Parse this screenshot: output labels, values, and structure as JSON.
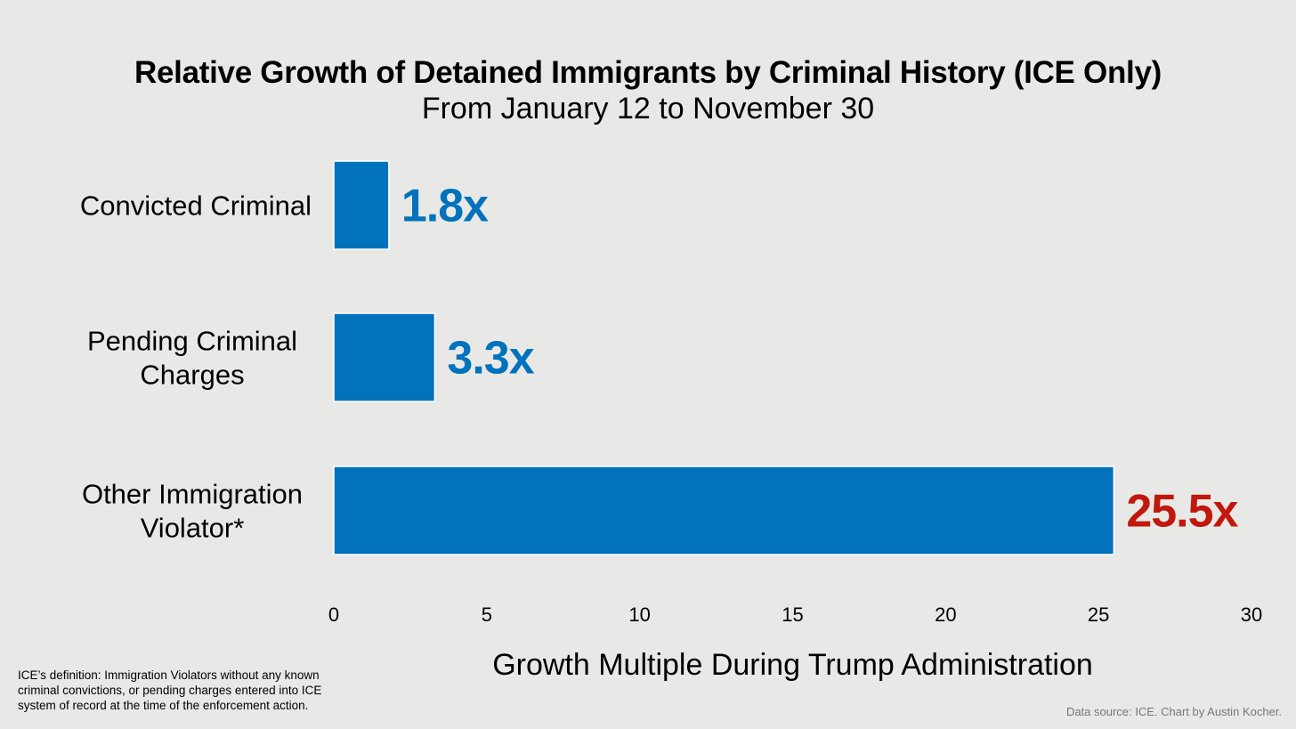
{
  "chart_data": {
    "type": "bar",
    "orientation": "horizontal",
    "title": "Relative Growth of Detained Immigrants by Criminal History (ICE Only)",
    "subtitle": "From January 12 to November 30",
    "categories": [
      "Convicted Criminal",
      "Pending Criminal Charges",
      "Other Immigration Violator*"
    ],
    "category_lines": [
      [
        "Convicted Criminal"
      ],
      [
        "Pending Criminal",
        "Charges"
      ],
      [
        "Other Immigration",
        "Violator*"
      ]
    ],
    "values": [
      1.8,
      3.3,
      25.5
    ],
    "value_labels": [
      "1.8x",
      "3.3x",
      "25.5x"
    ],
    "value_label_colors": [
      "#0172bb",
      "#0172bb",
      "#c0180c"
    ],
    "bar_color": "#0172bb",
    "xlabel": "Growth Multiple During Trump Administration",
    "ylabel": "",
    "xlim": [
      0,
      30
    ],
    "xticks": [
      0,
      5,
      10,
      15,
      20,
      25,
      30
    ],
    "grid": false
  },
  "footnote": "ICE’s definition: Immigration Violators without any known criminal convictions, or pending charges entered into ICE system of record at the time of the enforcement action.",
  "source": "Data source: ICE. Chart by Austin Kocher."
}
